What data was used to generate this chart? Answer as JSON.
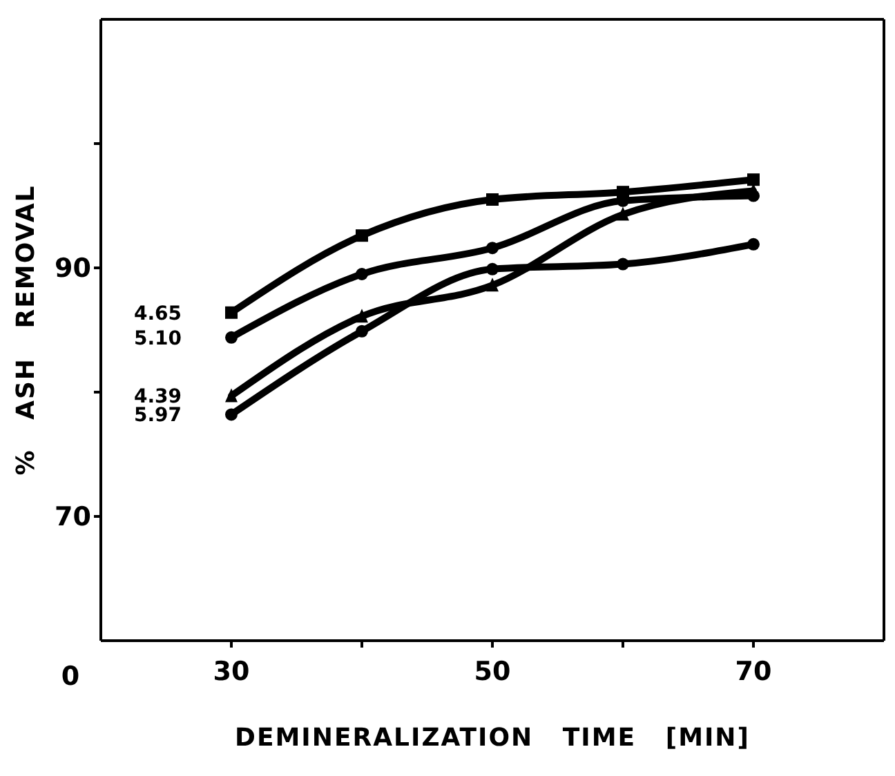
{
  "chart_data": {
    "type": "line",
    "xlabel": "DEMINERALIZATION TIME [MIN]",
    "ylabel": "% ASH REMOVAL",
    "x": [
      30,
      40,
      50,
      60,
      70
    ],
    "xlim": [
      20,
      80
    ],
    "annotations": [
      "0"
    ],
    "xticks": [
      30,
      {
        "value": 40,
        "label": null
      },
      50,
      {
        "value": 60,
        "label": null
      },
      70
    ],
    "ylim": [
      60,
      110
    ],
    "yticks": [
      70,
      {
        "value": 80,
        "label": null
      },
      90,
      {
        "value": 100,
        "label": null
      }
    ],
    "grid": false,
    "legend": false,
    "line_style": "solid",
    "series": [
      {
        "name": "4.65",
        "color": "#000000",
        "marker": "square",
        "values": [
          86.4,
          92.6,
          95.5,
          96.1,
          97.1
        ]
      },
      {
        "name": "5.10",
        "color": "#000000",
        "marker": "circle",
        "values": [
          84.4,
          89.5,
          91.6,
          95.4,
          95.8
        ]
      },
      {
        "name": "4.39",
        "color": "#000000",
        "marker": "triangle",
        "values": [
          79.7,
          86.1,
          88.6,
          94.3,
          96.2
        ]
      },
      {
        "name": "5.97",
        "color": "#000000",
        "marker": "circle",
        "values": [
          78.2,
          84.9,
          89.9,
          90.3,
          91.9
        ]
      }
    ]
  }
}
